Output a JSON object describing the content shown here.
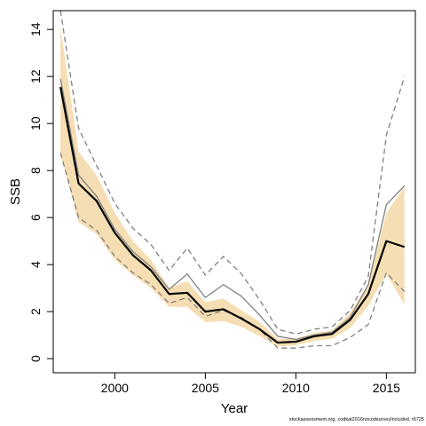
{
  "chart_data": {
    "type": "line",
    "xlabel": "Year",
    "ylabel": "SSB",
    "xlim": [
      1996.6,
      2016.6
    ],
    "ylim": [
      -0.6,
      14.8
    ],
    "x_ticks": [
      2000,
      2005,
      2010,
      2015
    ],
    "y_ticks": [
      0,
      2,
      4,
      6,
      8,
      10,
      12,
      14
    ],
    "grid": false,
    "legend": "none",
    "x": [
      1997,
      1998,
      1999,
      2000,
      2001,
      2002,
      2003,
      2004,
      2005,
      2006,
      2007,
      2008,
      2009,
      2010,
      2011,
      2012,
      2013,
      2014,
      2015,
      2016
    ],
    "series": [
      {
        "role": "estimate",
        "values": [
          11.55,
          7.45,
          6.7,
          5.35,
          4.4,
          3.75,
          2.75,
          2.8,
          2.0,
          2.1,
          1.7,
          1.25,
          0.68,
          0.72,
          0.95,
          1.05,
          1.65,
          2.75,
          5.0,
          4.75
        ],
        "color": "#000000"
      },
      {
        "role": "ci-band",
        "lower": [
          8.7,
          5.8,
          5.3,
          4.2,
          3.55,
          3.0,
          2.2,
          2.2,
          1.55,
          1.6,
          1.35,
          0.95,
          0.52,
          0.57,
          0.75,
          0.85,
          1.3,
          2.25,
          3.6,
          2.3
        ],
        "upper": [
          14.1,
          8.8,
          7.8,
          6.2,
          5.0,
          4.2,
          3.0,
          3.3,
          2.4,
          2.55,
          2.05,
          1.55,
          0.85,
          0.85,
          1.1,
          1.2,
          1.95,
          3.15,
          6.2,
          7.3
        ],
        "color": "#f5deb3"
      },
      {
        "role": "comparison-estimate",
        "values": [
          11.9,
          7.8,
          6.9,
          5.5,
          4.55,
          3.9,
          2.95,
          3.6,
          2.6,
          3.15,
          2.65,
          1.85,
          0.95,
          0.82,
          1.0,
          1.12,
          1.75,
          3.15,
          6.55,
          7.35
        ],
        "color": "#808080"
      },
      {
        "role": "comparison-upper",
        "values": [
          14.8,
          9.8,
          8.2,
          6.6,
          5.55,
          4.85,
          3.75,
          4.7,
          3.55,
          4.35,
          3.6,
          2.5,
          1.25,
          1.05,
          1.25,
          1.35,
          2.05,
          3.5,
          9.5,
          12.0
        ],
        "color": "#808080"
      },
      {
        "role": "comparison-lower",
        "values": [
          8.75,
          6.0,
          5.45,
          4.35,
          3.65,
          3.15,
          2.35,
          2.6,
          1.8,
          2.05,
          1.75,
          1.25,
          0.45,
          0.45,
          0.55,
          0.55,
          0.9,
          1.45,
          3.65,
          2.85
        ],
        "color": "#808080"
      }
    ]
  },
  "footnote": "stockassessment.org, codkat2016nocodsurveyIncluded, r6725"
}
